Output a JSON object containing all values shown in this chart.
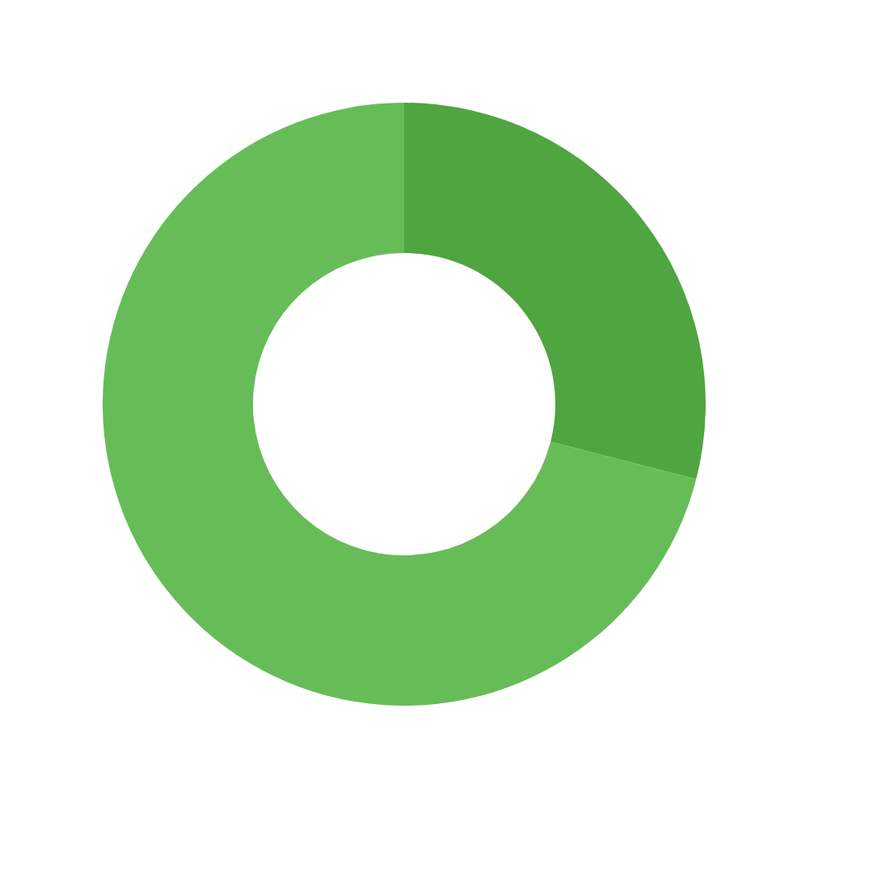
{
  "chart_data": {
    "type": "donut",
    "categories": [
      null,
      null
    ],
    "values": [
      29,
      71
    ],
    "colors": [
      "#4fa53f",
      "#66bd57"
    ],
    "legend": false
  }
}
